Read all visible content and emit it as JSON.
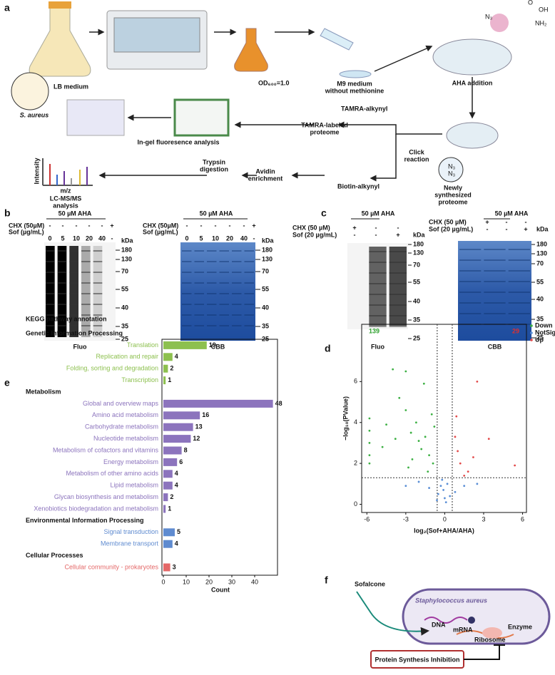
{
  "panel_labels": [
    "a",
    "b",
    "c",
    "d",
    "e",
    "f"
  ],
  "panel_a": {
    "lb_medium": "LB medium",
    "species": "S. aureus",
    "od": "OD₆₀₀=1.0",
    "m9": [
      "M9 medium",
      "without methionine"
    ],
    "aha_addition": "AHA addition",
    "azide": "N₃",
    "acid_o": "O",
    "acid_oh": "OH",
    "amine": "NH₂",
    "tamra_alkynyl": "TAMRA-alkynyl",
    "tamra_proteome": [
      "TAMRA-labeled",
      "proteome"
    ],
    "ingel": "In-gel fluoresence analysis",
    "click": [
      "Click",
      "reaction"
    ],
    "newly": [
      "Newly",
      "synthesized",
      "proteome"
    ],
    "biotin": "Biotin-alkynyl",
    "avidin": [
      "Avidin",
      "enrichment"
    ],
    "trypsin": [
      "Trypsin",
      "digestion"
    ],
    "lcms": [
      "LC-MS/MS",
      "analysis"
    ],
    "intensity": "Intensity",
    "mz": "m/z",
    "n3_small": [
      "N₃",
      "N₃"
    ]
  },
  "gels": [
    {
      "header": "50 µM AHA",
      "chx_label": "CHX (50µM)",
      "sof_label": "Sof (µg/mL)",
      "chx": [
        "-",
        "-",
        "-",
        "-",
        "-",
        "+"
      ],
      "sof": [
        "0",
        "5",
        "10",
        "20",
        "40",
        "-"
      ],
      "kda": "kDa",
      "markers": [
        180,
        130,
        70,
        55,
        40,
        35,
        25
      ],
      "caption": "Fluo"
    },
    {
      "header": "50 µM AHA",
      "chx_label": "CHX (50µM)",
      "sof_label": "Sof (µg/mL)",
      "chx": [
        "-",
        "-",
        "-",
        "-",
        "-",
        "+"
      ],
      "sof": [
        "0",
        "5",
        "10",
        "20",
        "40",
        "-"
      ],
      "kda": "kDa",
      "markers": [
        180,
        130,
        70,
        55,
        40,
        35,
        25
      ],
      "caption": "CBB"
    },
    {
      "header": "50 µM AHA",
      "chx_label": "CHX (50 µM)",
      "sof_label": "Sof (20 µg/mL)",
      "chx": [
        "+",
        "-",
        "-"
      ],
      "sof": [
        "-",
        "-",
        "+"
      ],
      "kda": "kDa",
      "markers": [
        180,
        130,
        70,
        55,
        40,
        35,
        25
      ],
      "caption": "Fluo"
    },
    {
      "header": "50 µM AHA",
      "chx_label": "CHX (50 µM)",
      "sof_label": "Sof (20 µg/mL)",
      "chx": [
        "+",
        "-",
        "-"
      ],
      "sof": [
        "-",
        "-",
        "+"
      ],
      "kda": "kDa",
      "markers": [
        180,
        130,
        70,
        55,
        40,
        35,
        25
      ],
      "caption": "CBB"
    }
  ],
  "panel_f": {
    "sofalcone": "Sofalcone",
    "species": "Staphylococcus aureus",
    "dna": "DNA",
    "mrna": "mRNA",
    "enzyme": "Enzyme",
    "ribosome": "Ribosome",
    "inhibition": "Protein Synthesis Inhibition"
  },
  "chart_data": [
    {
      "type": "scatter",
      "xlabel": "log₂(Sof+AHA/AHA)",
      "ylabel": "−log₁₀(PValue)",
      "xlim": [
        -6.4,
        6.3
      ],
      "ylim": [
        -0.4,
        8.8
      ],
      "xticks": [
        -6,
        -3,
        0,
        3,
        6
      ],
      "yticks": [
        0,
        2,
        4,
        6
      ],
      "thresholds": {
        "x": [
          -0.58,
          0.58
        ],
        "y": 1.3
      },
      "legend": "right",
      "counts": [
        {
          "text": "139",
          "color": "#2ca02c"
        },
        {
          "text": "29",
          "color": "#e03030"
        }
      ],
      "series": [
        {
          "name": "Down",
          "color": "#3cb043",
          "x": [
            -5.8,
            -5.8,
            -5.8,
            -5.8,
            -5.8,
            -4.5,
            -4,
            -3.5,
            -3,
            -2.6,
            -2.2,
            -2,
            -1.8,
            -1.5,
            -1.2,
            -1,
            -0.9,
            -3,
            -2.5,
            -4.8,
            -1.6,
            -0.8,
            -3.8,
            -2.8,
            -1.3
          ],
          "values": [
            2.4,
            3,
            3.6,
            2,
            4.2,
            3.9,
            6.6,
            5.2,
            4.6,
            3.5,
            4,
            3.1,
            2.7,
            3.3,
            2.4,
            4.4,
            2,
            6.5,
            2.2,
            2.8,
            5.9,
            3.8,
            3.2,
            1.8,
            1.6
          ]
        },
        {
          "name": "NotSig",
          "color": "#5b8fd6",
          "x": [
            -0.5,
            -0.3,
            0,
            0.2,
            -0.1,
            0.4,
            -1.2,
            -2,
            0.8,
            1.5,
            -0.2,
            0.1,
            -0.6,
            2.5,
            -3
          ],
          "values": [
            0.5,
            0.9,
            0.3,
            1,
            0.7,
            0.4,
            0.8,
            1.1,
            0.6,
            0.9,
            1.2,
            0.1,
            0.2,
            1,
            0.9
          ]
        },
        {
          "name": "Up",
          "color": "#e34a4a",
          "x": [
            0.8,
            1.2,
            1,
            2.5,
            1.8,
            3.4,
            2.2,
            5.4,
            0.9,
            1.5
          ],
          "values": [
            3.3,
            2,
            2.6,
            6,
            1.6,
            3.2,
            2.3,
            1.9,
            4.3,
            1.4
          ]
        }
      ]
    },
    {
      "type": "barh",
      "title": "KEGG pathway annotation",
      "xlabel": "Count",
      "xlim": [
        0,
        50
      ],
      "xticks": [
        0,
        10,
        20,
        30,
        40
      ],
      "groups": [
        {
          "name": "Genetic Information Processing",
          "color": "#8dc04f",
          "categories": [
            "Translation",
            "Replication and repair",
            "Folding, sorting and degradation",
            "Transcription"
          ],
          "values": [
            19,
            4,
            2,
            1
          ]
        },
        {
          "name": "Metabolism",
          "color": "#8c74bd",
          "categories": [
            "Global and overview maps",
            "Amino acid metabolism",
            "Carbohydrate metabolism",
            "Nucleotide metabolism",
            "Metabolism of cofactors and vitamins",
            "Energy metabolism",
            "Metabolism of other amino acids",
            "Lipid metabolism",
            "Glycan biosynthesis and metabolism",
            "Xenobiotics biodegradation and metabolism"
          ],
          "values": [
            48,
            16,
            13,
            12,
            8,
            6,
            4,
            4,
            2,
            1
          ]
        },
        {
          "name": "Environmental Information Processing",
          "color": "#5f8bd0",
          "categories": [
            "Signal transduction",
            "Membrane transport"
          ],
          "values": [
            5,
            4
          ]
        },
        {
          "name": "Cellular Processes",
          "color": "#e46868",
          "categories": [
            "Cellular community - prokaryotes"
          ],
          "values": [
            3
          ]
        }
      ]
    }
  ]
}
